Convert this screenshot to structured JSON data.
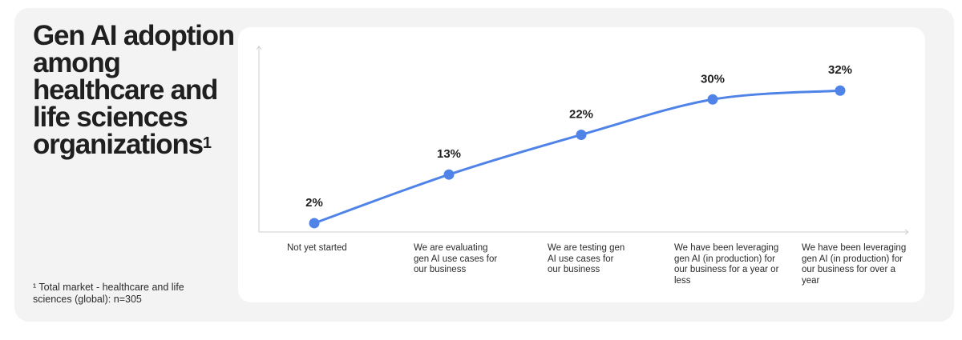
{
  "title": {
    "main": "Gen AI adoption among healthcare and life sciences organizations",
    "superscript": "1"
  },
  "footnote": "¹ Total market - healthcare and life sciences (global): n=305",
  "colors": {
    "line": "#5083e8",
    "panel": "#f3f3f3",
    "card": "#ffffff",
    "axis": "#cfcfcf"
  },
  "chart_data": {
    "type": "line",
    "categories": [
      "Not yet started",
      "We are evaluating gen AI use cases for our business",
      "We are testing gen AI use cases for our business",
      "We have been leveraging gen AI (in production) for our business for a year or less",
      "We have been leveraging gen AI (in production) for our business for over a year"
    ],
    "values": [
      2,
      13,
      22,
      30,
      32
    ],
    "data_labels": [
      "2%",
      "13%",
      "22%",
      "30%",
      "32%"
    ],
    "ylim": [
      0,
      42
    ],
    "grid": false,
    "legend": "none"
  }
}
